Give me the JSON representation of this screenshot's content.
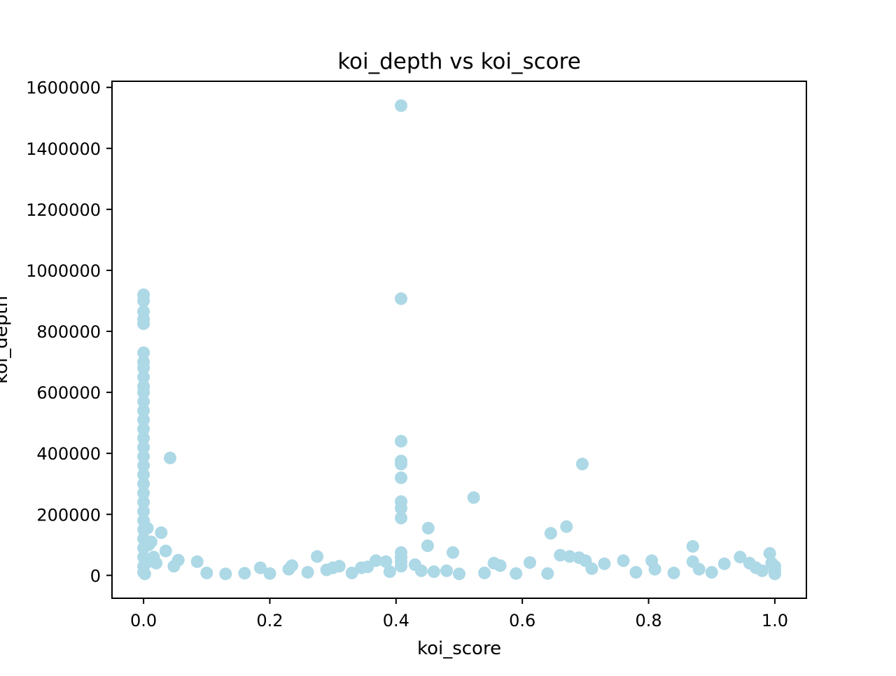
{
  "chart_data": {
    "type": "scatter",
    "title": "koi_depth vs koi_score",
    "xlabel": "koi_score",
    "ylabel": "koi_depth",
    "xlim": [
      -0.05,
      1.05
    ],
    "ylim": [
      -75000,
      1620000
    ],
    "x_ticks": [
      0.0,
      0.2,
      0.4,
      0.6,
      0.8,
      1.0
    ],
    "x_tick_labels": [
      "0.0",
      "0.2",
      "0.4",
      "0.6",
      "0.8",
      "1.0"
    ],
    "y_ticks": [
      0,
      200000,
      400000,
      600000,
      800000,
      1000000,
      1200000,
      1400000,
      1600000
    ],
    "y_tick_labels": [
      "0",
      "200000",
      "400000",
      "600000",
      "800000",
      "1000000",
      "1200000",
      "1400000",
      "1600000"
    ],
    "grid": false,
    "marker_color": "#add8e6",
    "series": [
      {
        "points": [
          [
            0.0,
            920000
          ],
          [
            0.0,
            900000
          ],
          [
            0.0,
            865000
          ],
          [
            0.0,
            840000
          ],
          [
            0.0,
            825000
          ],
          [
            0.0,
            730000
          ],
          [
            0.0,
            700000
          ],
          [
            0.0,
            680000
          ],
          [
            0.0,
            650000
          ],
          [
            0.0,
            620000
          ],
          [
            0.0,
            600000
          ],
          [
            0.0,
            570000
          ],
          [
            0.0,
            540000
          ],
          [
            0.0,
            510000
          ],
          [
            0.0,
            480000
          ],
          [
            0.0,
            450000
          ],
          [
            0.0,
            420000
          ],
          [
            0.0,
            390000
          ],
          [
            0.0,
            360000
          ],
          [
            0.0,
            330000
          ],
          [
            0.0,
            300000
          ],
          [
            0.0,
            270000
          ],
          [
            0.0,
            240000
          ],
          [
            0.0,
            210000
          ],
          [
            0.0,
            180000
          ],
          [
            0.0,
            150000
          ],
          [
            0.0,
            120000
          ],
          [
            0.0,
            90000
          ],
          [
            0.0,
            60000
          ],
          [
            0.0,
            30000
          ],
          [
            0.0,
            10000
          ],
          [
            0.002,
            5000
          ],
          [
            0.004,
            40000
          ],
          [
            0.006,
            155000
          ],
          [
            0.008,
            100000
          ],
          [
            0.012,
            110000
          ],
          [
            0.016,
            60000
          ],
          [
            0.02,
            40000
          ],
          [
            0.028,
            140000
          ],
          [
            0.035,
            80000
          ],
          [
            0.042,
            385000
          ],
          [
            0.048,
            30000
          ],
          [
            0.055,
            50000
          ],
          [
            0.085,
            45000
          ],
          [
            0.1,
            8000
          ],
          [
            0.13,
            5000
          ],
          [
            0.16,
            7000
          ],
          [
            0.185,
            25000
          ],
          [
            0.2,
            6000
          ],
          [
            0.23,
            20000
          ],
          [
            0.235,
            32000
          ],
          [
            0.26,
            10000
          ],
          [
            0.275,
            62000
          ],
          [
            0.29,
            18000
          ],
          [
            0.3,
            25000
          ],
          [
            0.31,
            30000
          ],
          [
            0.33,
            8000
          ],
          [
            0.345,
            25000
          ],
          [
            0.355,
            28000
          ],
          [
            0.368,
            48000
          ],
          [
            0.384,
            45000
          ],
          [
            0.39,
            12000
          ],
          [
            0.408,
            1540000
          ],
          [
            0.408,
            907000
          ],
          [
            0.408,
            440000
          ],
          [
            0.408,
            375000
          ],
          [
            0.408,
            365000
          ],
          [
            0.408,
            320000
          ],
          [
            0.408,
            242000
          ],
          [
            0.408,
            220000
          ],
          [
            0.408,
            188000
          ],
          [
            0.408,
            75000
          ],
          [
            0.408,
            60000
          ],
          [
            0.408,
            45000
          ],
          [
            0.408,
            30000
          ],
          [
            0.43,
            35000
          ],
          [
            0.44,
            15000
          ],
          [
            0.451,
            155000
          ],
          [
            0.45,
            97000
          ],
          [
            0.46,
            12000
          ],
          [
            0.48,
            15000
          ],
          [
            0.49,
            75000
          ],
          [
            0.5,
            5000
          ],
          [
            0.523,
            255000
          ],
          [
            0.54,
            8000
          ],
          [
            0.555,
            40000
          ],
          [
            0.565,
            32000
          ],
          [
            0.59,
            6000
          ],
          [
            0.612,
            42000
          ],
          [
            0.64,
            6000
          ],
          [
            0.645,
            138000
          ],
          [
            0.66,
            66000
          ],
          [
            0.67,
            160000
          ],
          [
            0.675,
            62000
          ],
          [
            0.69,
            58000
          ],
          [
            0.695,
            365000
          ],
          [
            0.7,
            48000
          ],
          [
            0.71,
            22000
          ],
          [
            0.73,
            38000
          ],
          [
            0.76,
            48000
          ],
          [
            0.78,
            10000
          ],
          [
            0.805,
            48000
          ],
          [
            0.81,
            20000
          ],
          [
            0.84,
            8000
          ],
          [
            0.87,
            95000
          ],
          [
            0.87,
            45000
          ],
          [
            0.88,
            20000
          ],
          [
            0.9,
            10000
          ],
          [
            0.92,
            38000
          ],
          [
            0.945,
            60000
          ],
          [
            0.96,
            40000
          ],
          [
            0.97,
            25000
          ],
          [
            0.98,
            15000
          ],
          [
            0.992,
            72000
          ],
          [
            0.995,
            40000
          ],
          [
            1.0,
            30000
          ],
          [
            1.0,
            20000
          ],
          [
            1.0,
            10000
          ],
          [
            1.0,
            5000
          ]
        ]
      }
    ]
  }
}
